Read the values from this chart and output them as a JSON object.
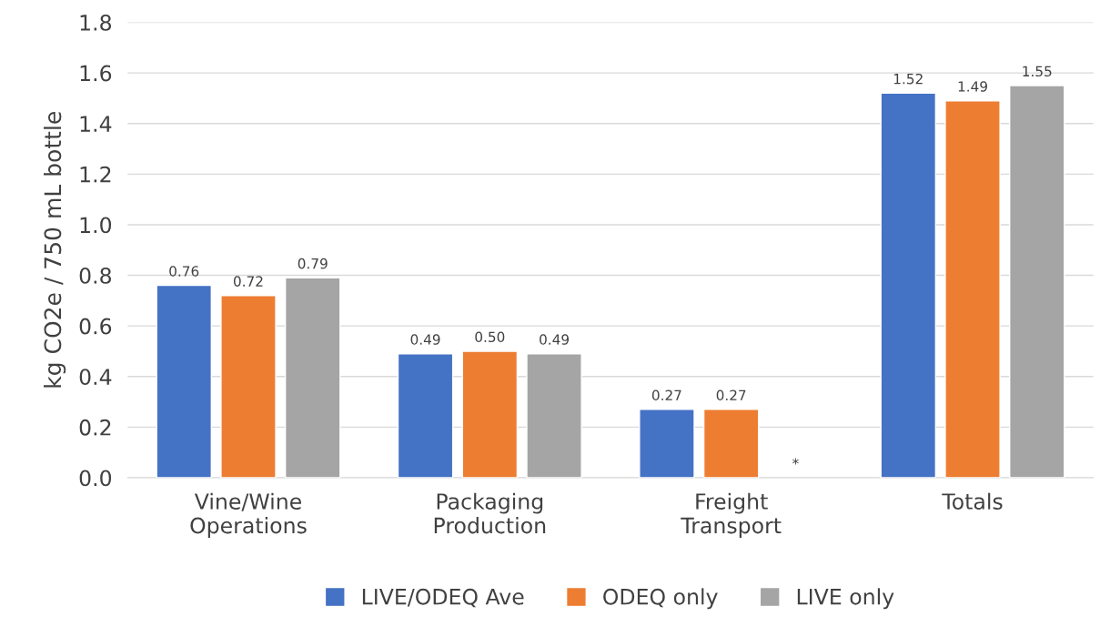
{
  "chart_data": {
    "type": "bar",
    "ylabel": "kg CO2e / 750 mL bottle",
    "categories": [
      "Vine/Wine\nOperations",
      "Packaging\nProduction",
      "Freight\nTransport",
      "Totals"
    ],
    "series": [
      {
        "name": "LIVE/ODEQ Ave",
        "color": "#4472c4",
        "values": [
          0.76,
          0.49,
          0.27,
          1.52
        ],
        "value_labels": [
          "0.76",
          "0.49",
          "0.27",
          "1.52"
        ]
      },
      {
        "name": "ODEQ only",
        "color": "#ed7d31",
        "values": [
          0.72,
          0.5,
          0.27,
          1.49
        ],
        "value_labels": [
          "0.72",
          "0.50",
          "0.27",
          "1.49"
        ]
      },
      {
        "name": "LIVE only",
        "color": "#a5a5a5",
        "values": [
          0.79,
          0.49,
          null,
          1.55
        ],
        "value_labels": [
          "0.79",
          "0.49",
          "*",
          "1.55"
        ]
      }
    ],
    "ylim": [
      0,
      1.8
    ],
    "yticks": [
      {
        "value": 0,
        "label": "0.0"
      },
      0.2,
      0.4,
      0.6,
      0.8,
      {
        "value": 1,
        "label": "1.0"
      },
      1.2,
      1.4,
      1.6,
      1.8
    ],
    "grid": "y",
    "legend": "bottom"
  }
}
